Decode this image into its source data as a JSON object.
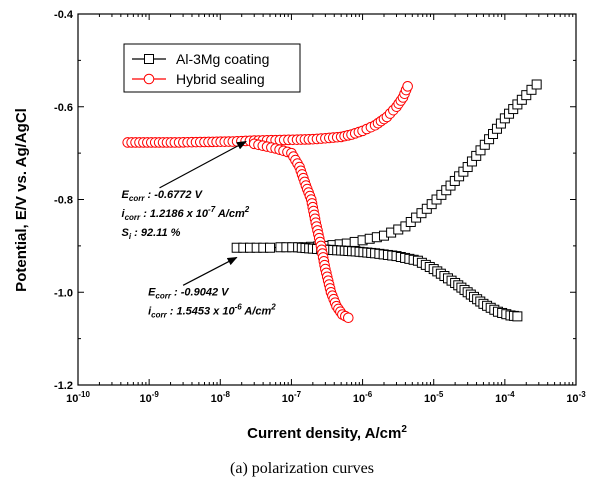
{
  "caption": "(a) polarization curves",
  "chart_data": {
    "type": "line",
    "xlabel": "Current density, A/cm",
    "xlabel_sup": "2",
    "ylabel": "Potential, E/V vs. Ag/AgCl",
    "xscale": "log",
    "xlim": [
      1e-10,
      0.001
    ],
    "ylim": [
      -1.2,
      -0.4
    ],
    "x_tick_exponents": [
      -10,
      -9,
      -8,
      -7,
      -6,
      -5,
      -4,
      -3
    ],
    "y_ticks": [
      "-1.2",
      "-1.0",
      "-0.8",
      "-0.6",
      "-0.4"
    ],
    "y_tick_values": [
      -1.2,
      -1.0,
      -0.8,
      -0.6,
      -0.4
    ],
    "legend_position": "top-left",
    "series": [
      {
        "name": "Al-3Mg coating",
        "color": "#000000",
        "marker": "square",
        "x": [
          1.7e-08,
          5e-08,
          7e-08,
          8.5e-08,
          1.5e-07,
          3e-07,
          6e-07,
          1e-06,
          2e-06,
          4e-06,
          8e-06,
          1.5e-05,
          3e-05,
          6e-05,
          0.0001,
          0.00015,
          0.0002,
          0.00028,
          1.4e-07,
          2e-07,
          3e-07,
          5e-07,
          8e-07,
          1.5e-06,
          3e-06,
          6e-06,
          1e-05,
          2e-05,
          3e-05,
          5e-05,
          8e-05,
          0.00012,
          0.00015
        ],
        "y": [
          -0.904,
          -0.904,
          -0.903,
          -0.903,
          -0.903,
          -0.9,
          -0.895,
          -0.888,
          -0.878,
          -0.858,
          -0.82,
          -0.78,
          -0.73,
          -0.67,
          -0.625,
          -0.595,
          -0.575,
          -0.552,
          -0.904,
          -0.906,
          -0.908,
          -0.91,
          -0.912,
          -0.916,
          -0.922,
          -0.932,
          -0.95,
          -0.98,
          -1.0,
          -1.025,
          -1.042,
          -1.05,
          -1.052
        ],
        "segments": [
          18
        ]
      },
      {
        "name": "Hybrid sealing",
        "color": "#ff0000",
        "marker": "circle",
        "x": [
          5e-10,
          2.3e-09,
          6e-09,
          1.5e-08,
          3e-08,
          6e-08,
          1.2e-07,
          2e-07,
          3e-07,
          5e-07,
          7e-07,
          1e-06,
          1.5e-06,
          2.2e-06,
          3e-06,
          3.7e-06,
          4.3e-06,
          3e-08,
          6e-08,
          1e-07,
          1.3e-07,
          1.6e-07,
          1.9e-07,
          2.2e-07,
          2.6e-07,
          3e-07,
          3.6e-07,
          4.3e-07,
          5.2e-07,
          6.3e-07
        ],
        "y": [
          -0.677,
          -0.677,
          -0.676,
          -0.675,
          -0.673,
          -0.672,
          -0.671,
          -0.67,
          -0.668,
          -0.665,
          -0.66,
          -0.652,
          -0.64,
          -0.622,
          -0.6,
          -0.58,
          -0.556,
          -0.68,
          -0.69,
          -0.7,
          -0.73,
          -0.77,
          -0.8,
          -0.85,
          -0.9,
          -0.95,
          -1.0,
          -1.03,
          -1.048,
          -1.055
        ],
        "segments": [
          17
        ]
      }
    ],
    "annotations": [
      {
        "lines": [
          {
            "sym": "E",
            "sub": "corr",
            "text": " : -0.6772 V"
          },
          {
            "sym": "i",
            "sub": "corr",
            "text": " : 1.2186 x 10",
            "sup": "-7",
            "tail": " A/cm",
            "sup2": "2"
          },
          {
            "sym": "S",
            "sub": "i",
            "text": " : 92.11 %"
          }
        ],
        "arrow_from": {
          "x": 1.4e-09,
          "y": -0.775
        },
        "arrow_to": {
          "x": 2.3e-08,
          "y": -0.675
        }
      },
      {
        "lines": [
          {
            "sym": "E",
            "sub": "corr",
            "text": " : -0.9042 V"
          },
          {
            "sym": "i",
            "sub": "corr",
            "text": " : 1.5453 x 10",
            "sup": "-6",
            "tail": " A/cm",
            "sup2": "2"
          }
        ],
        "arrow_from": {
          "x": 3e-09,
          "y": -0.985
        },
        "arrow_to": {
          "x": 1.7e-08,
          "y": -0.925
        }
      }
    ]
  }
}
